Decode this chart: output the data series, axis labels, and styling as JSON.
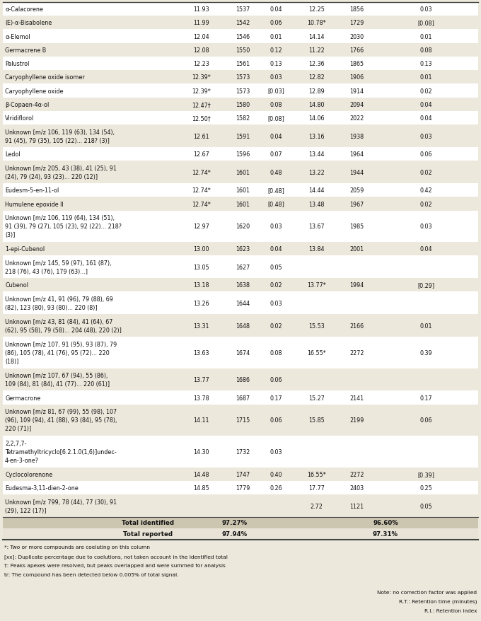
{
  "rows": [
    {
      "name": "α-Calacorene",
      "c1": "11.93",
      "c2": "1537",
      "c3": "0.04",
      "c4": "12.25",
      "c5": "1856",
      "c6": "0.03",
      "nlines": 1
    },
    {
      "name": "(E)-α-Bisabolene",
      "c1": "11.99",
      "c2": "1542",
      "c3": "0.06",
      "c4": "10.78*",
      "c5": "1729",
      "c6": "[0.08]",
      "nlines": 1
    },
    {
      "name": "α-Elemol",
      "c1": "12.04",
      "c2": "1546",
      "c3": "0.01",
      "c4": "14.14",
      "c5": "2030",
      "c6": "0.01",
      "nlines": 1
    },
    {
      "name": "Germacrene B",
      "c1": "12.08",
      "c2": "1550",
      "c3": "0.12",
      "c4": "11.22",
      "c5": "1766",
      "c6": "0.08",
      "nlines": 1
    },
    {
      "name": "Palustrol",
      "c1": "12.23",
      "c2": "1561",
      "c3": "0.13",
      "c4": "12.36",
      "c5": "1865",
      "c6": "0.13",
      "nlines": 1
    },
    {
      "name": "Caryophyllene oxide isomer",
      "c1": "12.39*",
      "c2": "1573",
      "c3": "0.03",
      "c4": "12.82",
      "c5": "1906",
      "c6": "0.01",
      "nlines": 1
    },
    {
      "name": "Caryophyllene oxide",
      "c1": "12.39*",
      "c2": "1573",
      "c3": "[0.03]",
      "c4": "12.89",
      "c5": "1914",
      "c6": "0.02",
      "nlines": 1
    },
    {
      "name": "β-Copaen-4α-ol",
      "c1": "12.47†",
      "c2": "1580",
      "c3": "0.08",
      "c4": "14.80",
      "c5": "2094",
      "c6": "0.04",
      "nlines": 1
    },
    {
      "name": "Viridiflorol",
      "c1": "12.50†",
      "c2": "1582",
      "c3": "[0.08]",
      "c4": "14.06",
      "c5": "2022",
      "c6": "0.04",
      "nlines": 1
    },
    {
      "name": "Unknown [m/z 106, 119 (63), 134 (54),\n91 (45), 79 (35), 105 (22)... 218? (3)]",
      "c1": "12.61",
      "c2": "1591",
      "c3": "0.04",
      "c4": "13.16",
      "c5": "1938",
      "c6": "0.03",
      "nlines": 2
    },
    {
      "name": "Ledol",
      "c1": "12.67",
      "c2": "1596",
      "c3": "0.07",
      "c4": "13.44",
      "c5": "1964",
      "c6": "0.06",
      "nlines": 1
    },
    {
      "name": "Unknown [m/z 205, 43 (38), 41 (25), 91\n(24), 79 (24), 93 (23)... 220 (12)]",
      "c1": "12.74*",
      "c2": "1601",
      "c3": "0.48",
      "c4": "13.22",
      "c5": "1944",
      "c6": "0.02",
      "nlines": 2
    },
    {
      "name": "Eudesm-5-en-11-ol",
      "c1": "12.74*",
      "c2": "1601",
      "c3": "[0.48]",
      "c4": "14.44",
      "c5": "2059",
      "c6": "0.42",
      "nlines": 1
    },
    {
      "name": "Humulene epoxide II",
      "c1": "12.74*",
      "c2": "1601",
      "c3": "[0.48]",
      "c4": "13.48",
      "c5": "1967",
      "c6": "0.02",
      "nlines": 1
    },
    {
      "name": "Unknown [m/z 106, 119 (64), 134 (51),\n91 (39), 79 (27), 105 (23), 92 (22)... 218?\n(3)]",
      "c1": "12.97",
      "c2": "1620",
      "c3": "0.03",
      "c4": "13.67",
      "c5": "1985",
      "c6": "0.03",
      "nlines": 3
    },
    {
      "name": "1-epi-Cubenol",
      "c1": "13.00",
      "c2": "1623",
      "c3": "0.04",
      "c4": "13.84",
      "c5": "2001",
      "c6": "0.04",
      "nlines": 1
    },
    {
      "name": "Unknown [m/z 145, 59 (97), 161 (87),\n218 (76), 43 (76), 179 (63)...]",
      "c1": "13.05",
      "c2": "1627",
      "c3": "0.05",
      "c4": "",
      "c5": "",
      "c6": "",
      "nlines": 2
    },
    {
      "name": "Cubenol",
      "c1": "13.18",
      "c2": "1638",
      "c3": "0.02",
      "c4": "13.77*",
      "c5": "1994",
      "c6": "[0.29]",
      "nlines": 1
    },
    {
      "name": "Unknown [m/z 41, 91 (96), 79 (88), 69\n(82), 123 (80), 93 (80)... 220 (8)]",
      "c1": "13.26",
      "c2": "1644",
      "c3": "0.03",
      "c4": "",
      "c5": "",
      "c6": "",
      "nlines": 2
    },
    {
      "name": "Unknown [m/z 43, 81 (84), 41 (64), 67\n(62), 95 (58), 79 (58)... 204 (48), 220 (2)]",
      "c1": "13.31",
      "c2": "1648",
      "c3": "0.02",
      "c4": "15.53",
      "c5": "2166",
      "c6": "0.01",
      "nlines": 2
    },
    {
      "name": "Unknown [m/z 107, 91 (95), 93 (87), 79\n(86), 105 (78), 41 (76), 95 (72)... 220\n(18)]",
      "c1": "13.63",
      "c2": "1674",
      "c3": "0.08",
      "c4": "16.55*",
      "c5": "2272",
      "c6": "0.39",
      "nlines": 3
    },
    {
      "name": "Unknown [m/z 107, 67 (94), 55 (86),\n109 (84), 81 (84), 41 (77)... 220 (61)]",
      "c1": "13.77",
      "c2": "1686",
      "c3": "0.06",
      "c4": "",
      "c5": "",
      "c6": "",
      "nlines": 2
    },
    {
      "name": "Germacrone",
      "c1": "13.78",
      "c2": "1687",
      "c3": "0.17",
      "c4": "15.27",
      "c5": "2141",
      "c6": "0.17",
      "nlines": 1
    },
    {
      "name": "Unknown [m/z 81, 67 (99), 55 (98), 107\n(96), 109 (94), 41 (88), 93 (84), 95 (78),\n220 (71)]",
      "c1": "14.11",
      "c2": "1715",
      "c3": "0.06",
      "c4": "15.85",
      "c5": "2199",
      "c6": "0.06",
      "nlines": 3
    },
    {
      "name": "2,2,7,7-\nTetramethyltricyclo[6.2.1.0(1,6)]undec-\n4-en-3-one?",
      "c1": "14.30",
      "c2": "1732",
      "c3": "0.03",
      "c4": "",
      "c5": "",
      "c6": "",
      "nlines": 3
    },
    {
      "name": "Cyclocolorenone",
      "c1": "14.48",
      "c2": "1747",
      "c3": "0.40",
      "c4": "16.55*",
      "c5": "2272",
      "c6": "[0.39]",
      "nlines": 1
    },
    {
      "name": "Eudesma-3,11-dien-2-one",
      "c1": "14.85",
      "c2": "1779",
      "c3": "0.26",
      "c4": "17.77",
      "c5": "2403",
      "c6": "0.25",
      "nlines": 1
    },
    {
      "name": "Unknown [m/z 799, 78 (44), 77 (30), 91\n(29), 122 (17)]",
      "c1": "",
      "c2": "",
      "c3": "",
      "c4": "2.72",
      "c5": "1121",
      "c6": "0.05",
      "nlines": 2
    }
  ],
  "footnotes": [
    "*: Two or more compounds are coeluting on this column",
    "[xx]: Duplicate percentage due to coelutions, not taken account in the identified total",
    "†: Peaks apexes were resolved, but peaks overlapped and were summed for analysis",
    "tr: The compound has been detected below 0.005% of total signal."
  ],
  "notes_right": [
    "Note: no correction factor was applied",
    "R.T.: Retention time (minutes)",
    "R.I.: Retention index"
  ],
  "bg_even": "#ffffff",
  "bg_odd": "#ede8dc",
  "bg_total_id": "#ccc5b0",
  "bg_total_rep": "#e8e3d6",
  "text_color": "#111111",
  "line_color": "#444444",
  "col_splits": [
    0.365,
    0.47,
    0.54,
    0.61,
    0.71,
    0.78,
    0.85
  ],
  "fig_width": 6.8,
  "fig_height": 8.79,
  "dpi": 100,
  "fs_data": 5.8,
  "fs_bold": 6.2,
  "fs_footnote": 5.3
}
